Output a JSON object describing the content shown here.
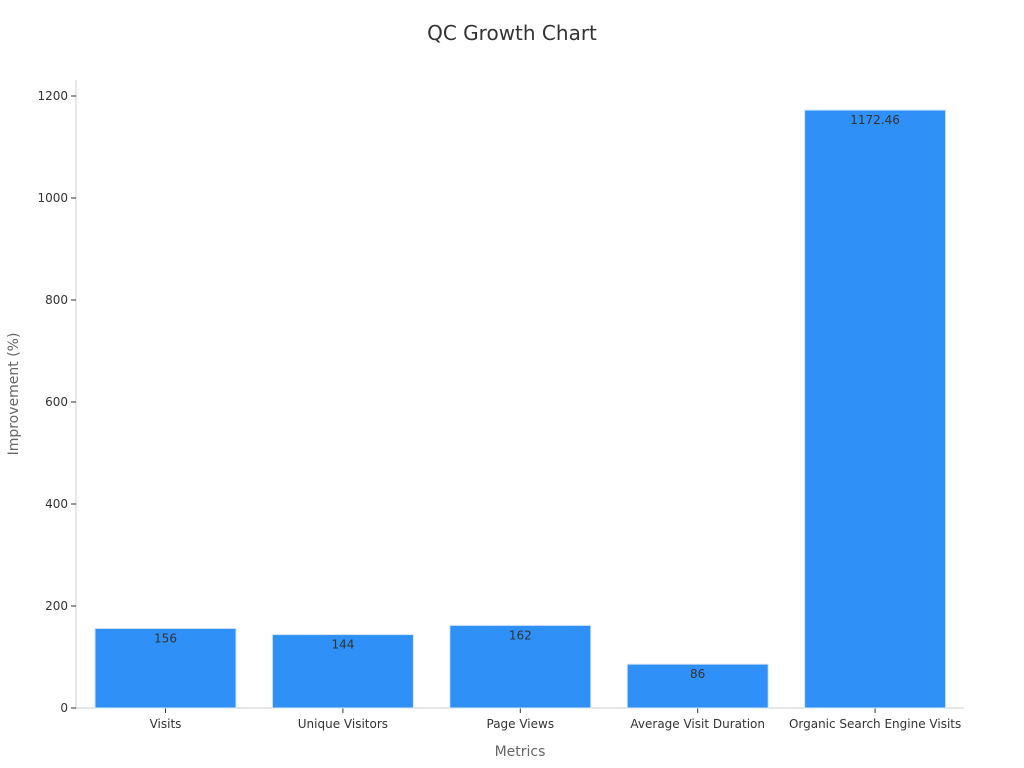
{
  "chart_data": {
    "type": "bar",
    "title": "QC Growth Chart",
    "xlabel": "Metrics",
    "ylabel": "Improvement (%)",
    "categories": [
      "Visits",
      "Unique Visitors",
      "Page Views",
      "Average Visit Duration",
      "Organic Search Engine Visits"
    ],
    "values": [
      156,
      144,
      162,
      86,
      1172.46
    ],
    "value_labels": [
      "156",
      "144",
      "162",
      "86",
      "1172.46"
    ],
    "ylim": [
      0,
      1230
    ],
    "yticks": [
      0,
      200,
      400,
      600,
      800,
      1000,
      1200
    ],
    "ytick_labels": [
      "0",
      "200",
      "400",
      "600",
      "800",
      "1000",
      "1200"
    ],
    "grid": false,
    "legend": "none",
    "bar_color": "#2f91f8",
    "bar_edge_color": "#d6e6f8",
    "axis_color": "#cccccc"
  }
}
